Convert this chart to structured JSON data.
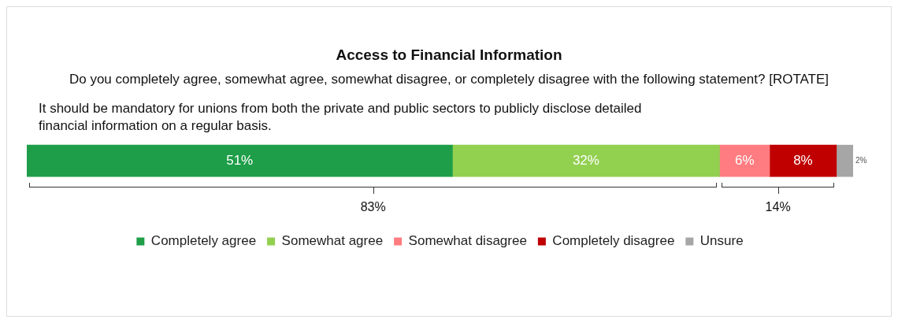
{
  "chart_data": {
    "type": "bar",
    "orientation": "horizontal",
    "stacked": true,
    "title": "Access to Financial Information",
    "subtitle": "Do you completely agree, somewhat agree, somewhat disagree, or completely disagree with the following statement? [ROTATE]",
    "categories": [
      null
    ],
    "series": [
      {
        "name": "Completely agree",
        "color": "#1e9e48",
        "values": [
          51
        ],
        "value_labels": [
          "51%"
        ]
      },
      {
        "name": "Somewhat agree",
        "color": "#92d050",
        "values": [
          32
        ],
        "value_labels": [
          "32%"
        ]
      },
      {
        "name": "Somewhat disagree",
        "color": "#ff7c80",
        "values": [
          6
        ],
        "value_labels": [
          "6%"
        ]
      },
      {
        "name": "Completely disagree",
        "color": "#c00000",
        "values": [
          8
        ],
        "value_labels": [
          "8%"
        ]
      },
      {
        "name": "Unsure",
        "color": "#a6a6a6",
        "values": [
          2
        ],
        "value_labels": [
          "2%"
        ]
      }
    ],
    "annotations": [
      "It should be mandatory for unions from both the private and public sectors to publicly disclose detailed financial information on a regular basis.",
      "83%",
      "14%"
    ],
    "legend": "bottom"
  }
}
